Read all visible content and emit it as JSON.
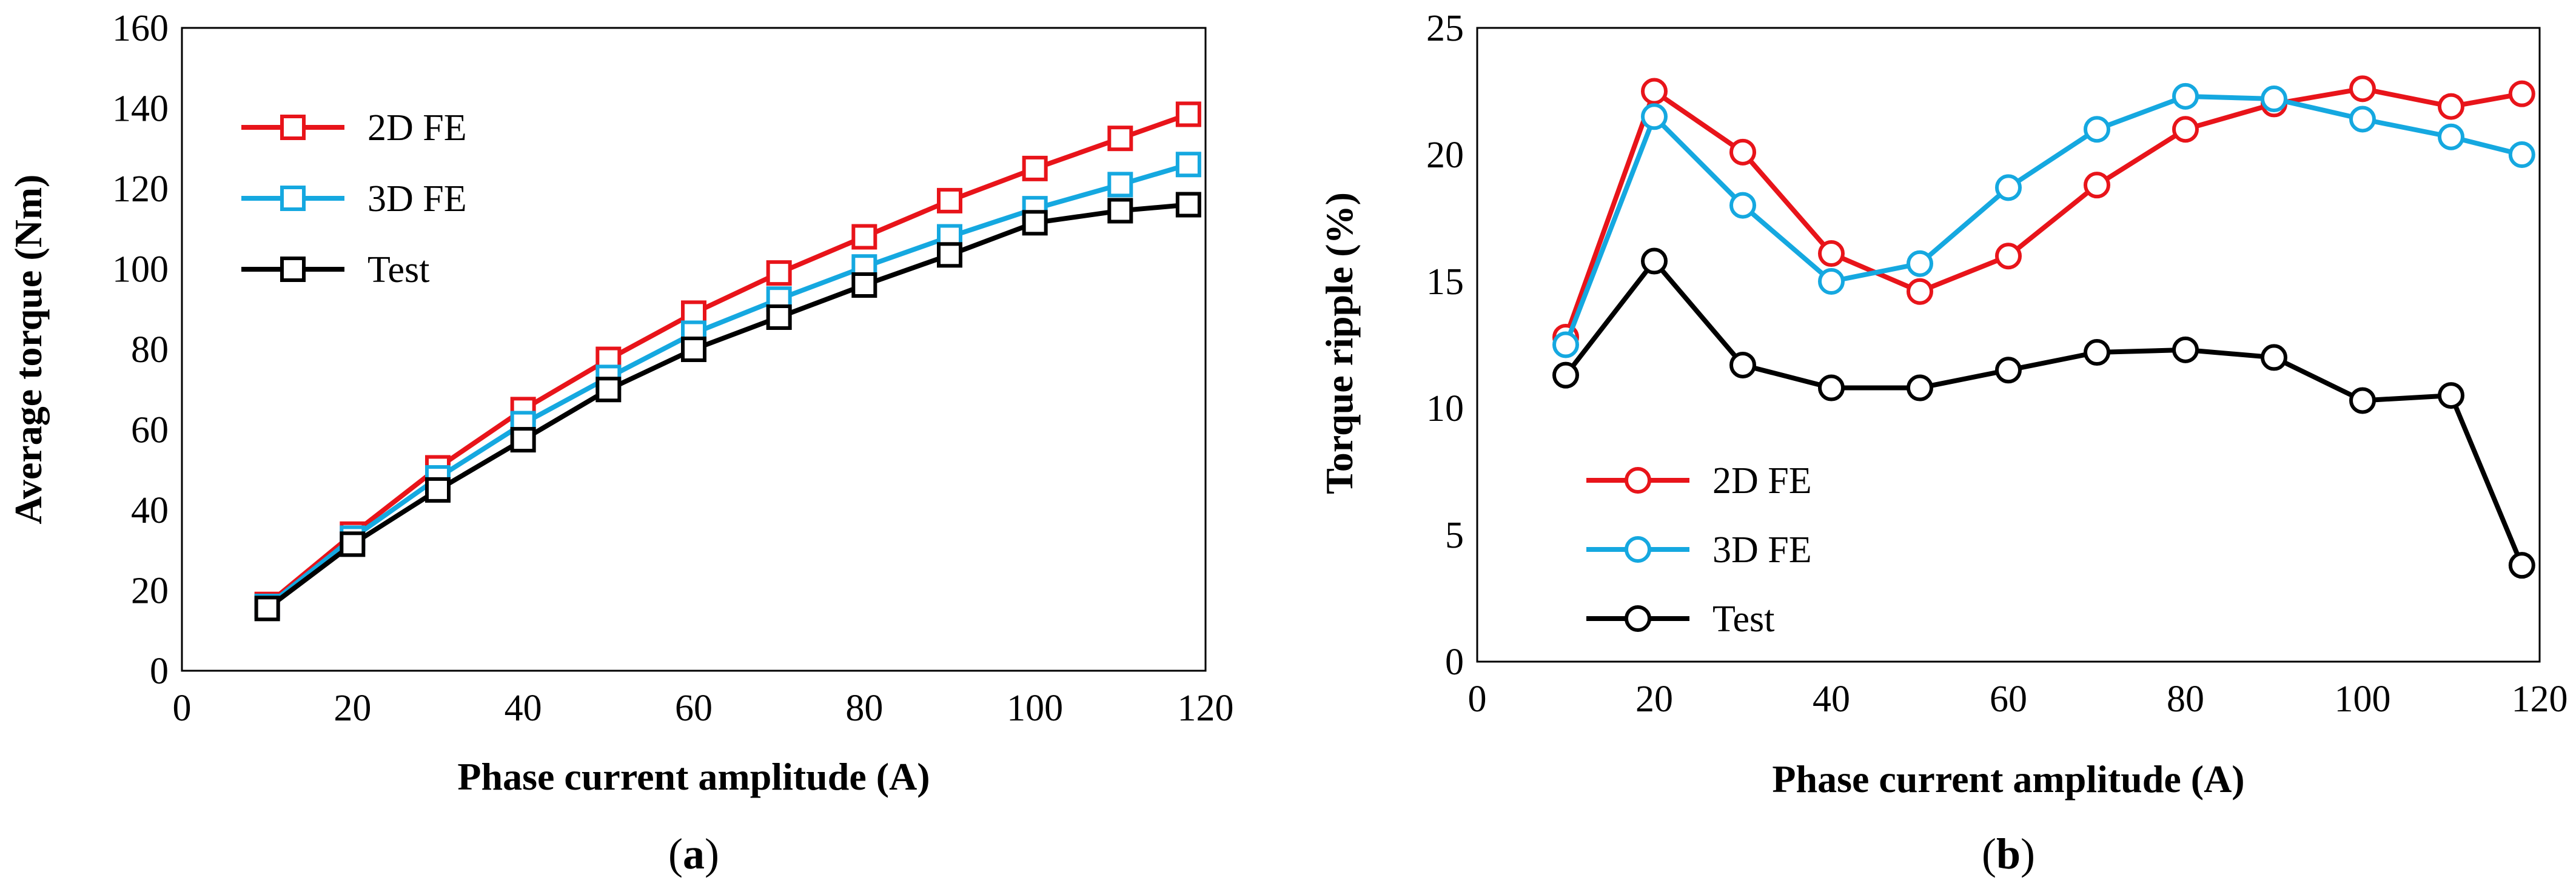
{
  "chart_data": [
    {
      "type": "line",
      "panel_label": "a",
      "xlabel": "Phase current amplitude (A)",
      "ylabel": "Average torque (Nm)",
      "xlim": [
        0,
        120
      ],
      "ylim": [
        0,
        160
      ],
      "xticks": [
        0,
        20,
        40,
        60,
        80,
        100,
        120
      ],
      "yticks": [
        0,
        20,
        40,
        60,
        80,
        100,
        120,
        140,
        160
      ],
      "x": [
        10,
        20,
        30,
        40,
        50,
        60,
        70,
        80,
        90,
        100,
        110,
        118
      ],
      "marker": "square",
      "legend_position": "top-left",
      "series": [
        {
          "name": "2D FE",
          "color": "#e8141a",
          "values": [
            16.5,
            34,
            50.5,
            65,
            77.5,
            89,
            99,
            108,
            117,
            125,
            132.5,
            138.5
          ]
        },
        {
          "name": "3D FE",
          "color": "#15a8e0",
          "values": [
            16,
            33,
            48,
            61.5,
            73,
            84,
            92.5,
            100.5,
            108,
            115,
            121,
            126
          ]
        },
        {
          "name": "Test",
          "color": "#000000",
          "values": [
            15.5,
            31.5,
            45,
            57.5,
            70,
            80,
            88,
            96,
            103.5,
            111.5,
            114.5,
            116
          ]
        }
      ]
    },
    {
      "type": "line",
      "panel_label": "b",
      "xlabel": "Phase current amplitude (A)",
      "ylabel": "Torque ripple (%)",
      "xlim": [
        0,
        120
      ],
      "ylim": [
        0,
        25
      ],
      "xticks": [
        0,
        20,
        40,
        60,
        80,
        100,
        120
      ],
      "yticks": [
        0,
        5,
        10,
        15,
        20,
        25
      ],
      "x": [
        10,
        20,
        30,
        40,
        50,
        60,
        70,
        80,
        90,
        100,
        110,
        118
      ],
      "marker": "circle",
      "legend_position": "bottom-left",
      "series": [
        {
          "name": "2D FE",
          "color": "#e8141a",
          "values": [
            12.8,
            22.5,
            20.1,
            16.1,
            14.6,
            16.0,
            18.8,
            21.0,
            22.0,
            22.6,
            21.9,
            22.4
          ]
        },
        {
          "name": "3D FE",
          "color": "#15a8e0",
          "values": [
            12.5,
            21.5,
            18.0,
            15.0,
            15.7,
            18.7,
            21.0,
            22.3,
            22.2,
            21.4,
            20.7,
            20.0
          ]
        },
        {
          "name": "Test",
          "color": "#000000",
          "values": [
            11.3,
            15.8,
            11.7,
            10.8,
            10.8,
            11.5,
            12.2,
            12.3,
            12.0,
            10.3,
            10.5,
            3.8
          ]
        }
      ]
    }
  ]
}
